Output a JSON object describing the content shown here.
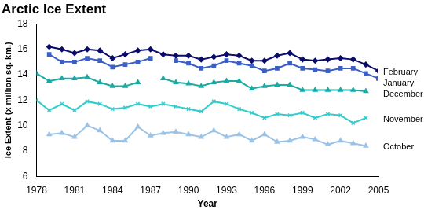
{
  "chart_data": {
    "type": "line",
    "title": "Arctic Ice Extent",
    "x_label": "Year",
    "y_label": "Ice Extent (x million sq. km.)",
    "x": [
      1978,
      1979,
      1980,
      1981,
      1982,
      1983,
      1984,
      1985,
      1986,
      1987,
      1988,
      1989,
      1990,
      1991,
      1992,
      1993,
      1994,
      1995,
      1996,
      1997,
      1998,
      1999,
      2000,
      2001,
      2002,
      2003,
      2004,
      2005
    ],
    "series": [
      {
        "name": "February",
        "color": "#0b0b6b",
        "marker": "diamond",
        "values": [
          null,
          16.2,
          16.0,
          15.7,
          16.0,
          15.9,
          15.3,
          15.6,
          15.9,
          16.0,
          15.6,
          15.5,
          15.5,
          15.2,
          15.4,
          15.6,
          15.5,
          15.1,
          15.1,
          15.5,
          15.7,
          15.2,
          15.1,
          15.2,
          15.3,
          15.2,
          14.8,
          14.3
        ]
      },
      {
        "name": "January",
        "color": "#3b5fc8",
        "marker": "square",
        "values": [
          null,
          15.6,
          15.0,
          15.0,
          15.3,
          15.1,
          14.6,
          14.8,
          15.0,
          15.3,
          null,
          15.1,
          14.9,
          14.5,
          14.7,
          15.1,
          14.9,
          14.7,
          14.3,
          14.5,
          14.9,
          14.5,
          14.4,
          14.3,
          14.5,
          14.5,
          14.1,
          13.7
        ]
      },
      {
        "name": "December",
        "color": "#1aaba3",
        "marker": "triangle",
        "values": [
          14.1,
          13.5,
          13.7,
          13.7,
          13.8,
          13.4,
          13.1,
          13.1,
          13.4,
          null,
          13.7,
          13.4,
          13.3,
          13.1,
          13.4,
          13.5,
          13.5,
          12.9,
          13.1,
          13.2,
          13.2,
          12.8,
          12.8,
          12.8,
          12.8,
          12.8,
          12.7,
          null
        ]
      },
      {
        "name": "November",
        "color": "#33cccc",
        "marker": "x",
        "values": [
          12.0,
          11.2,
          11.7,
          11.2,
          11.9,
          11.7,
          11.3,
          11.4,
          11.7,
          11.5,
          11.7,
          11.5,
          11.3,
          11.1,
          11.9,
          11.7,
          11.3,
          11.0,
          10.6,
          10.9,
          10.8,
          11.0,
          10.6,
          10.9,
          10.8,
          10.2,
          10.6,
          null
        ]
      },
      {
        "name": "October",
        "color": "#9cc3e6",
        "marker": "triangle",
        "values": [
          null,
          9.3,
          9.4,
          9.1,
          10.0,
          9.6,
          8.8,
          8.8,
          9.9,
          9.2,
          9.4,
          9.5,
          9.3,
          9.1,
          9.6,
          9.1,
          9.3,
          8.8,
          9.3,
          8.7,
          8.8,
          9.1,
          8.9,
          8.5,
          8.8,
          8.6,
          8.4,
          null
        ]
      }
    ],
    "xlim": [
      1978,
      2005
    ],
    "xticks": [
      1978,
      1981,
      1984,
      1987,
      1990,
      1993,
      1996,
      1999,
      2002,
      2005
    ],
    "ylim": [
      6,
      18
    ],
    "yticks": [
      6,
      8,
      10,
      12,
      14,
      16,
      18
    ],
    "grid": false
  }
}
